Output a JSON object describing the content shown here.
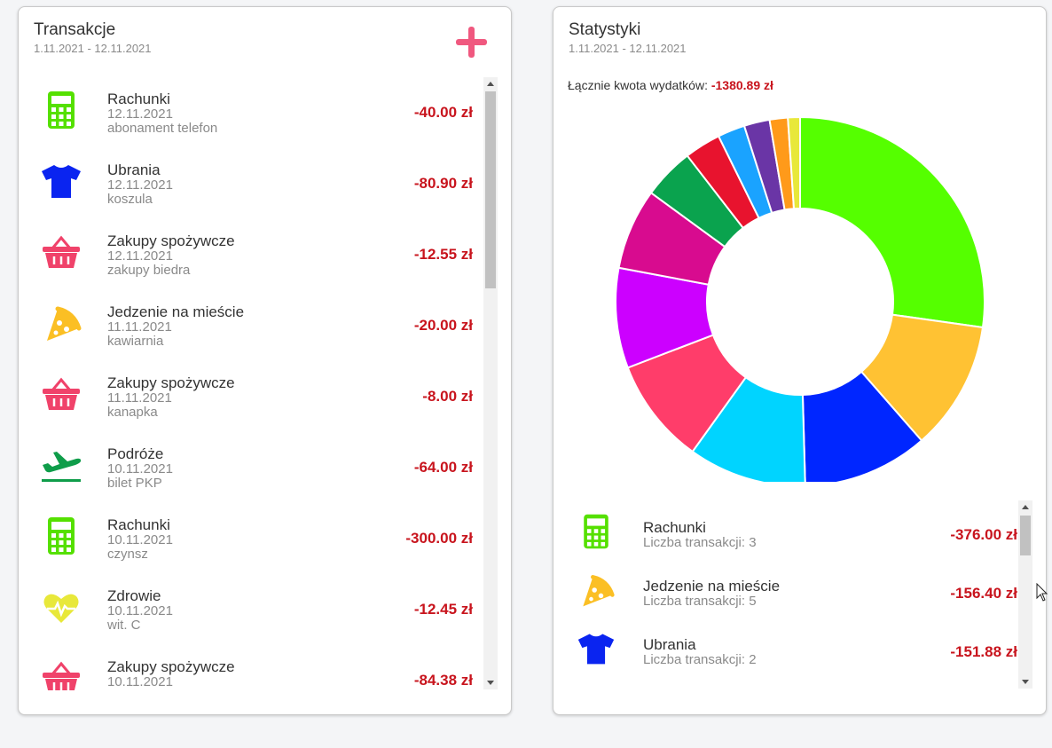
{
  "transactions": {
    "title": "Transakcje",
    "date_range": "1.11.2021 - 12.11.2021",
    "items": [
      {
        "category": "Rachunki",
        "date": "12.11.2021",
        "desc": "abonament telefon",
        "amount": "-40.00 zł",
        "icon": "calculator-icon",
        "color": "#55e000"
      },
      {
        "category": "Ubrania",
        "date": "12.11.2021",
        "desc": "koszula",
        "amount": "-80.90 zł",
        "icon": "tshirt-icon",
        "color": "#0a24f0"
      },
      {
        "category": "Zakupy spożywcze",
        "date": "12.11.2021",
        "desc": "zakupy biedra",
        "amount": "-12.55 zł",
        "icon": "basket-icon",
        "color": "#f0426a"
      },
      {
        "category": "Jedzenie na mieście",
        "date": "11.11.2021",
        "desc": "kawiarnia",
        "amount": "-20.00 zł",
        "icon": "pizza-icon",
        "color": "#fbbf24"
      },
      {
        "category": "Zakupy spożywcze",
        "date": "11.11.2021",
        "desc": "kanapka",
        "amount": "-8.00 zł",
        "icon": "basket-icon",
        "color": "#f0426a"
      },
      {
        "category": "Podróże",
        "date": "10.11.2021",
        "desc": "bilet PKP",
        "amount": "-64.00 zł",
        "icon": "airplane-icon",
        "color": "#0f9d4a"
      },
      {
        "category": "Rachunki",
        "date": "10.11.2021",
        "desc": "czynsz",
        "amount": "-300.00 zł",
        "icon": "calculator-icon",
        "color": "#55e000"
      },
      {
        "category": "Zdrowie",
        "date": "10.11.2021",
        "desc": "wit. C",
        "amount": "-12.45 zł",
        "icon": "heart-pulse-icon",
        "color": "#e8e83a"
      },
      {
        "category": "Zakupy spożywcze",
        "date": "10.11.2021",
        "desc": "",
        "amount": "-84.38 zł",
        "icon": "basket-icon",
        "color": "#f0426a"
      }
    ]
  },
  "statistics": {
    "title": "Statystyki",
    "date_range": "1.11.2021 - 12.11.2021",
    "total_label": "Łącznie kwota wydatków: ",
    "total_value": "-1380.89 zł",
    "categories": [
      {
        "name": "Rachunki",
        "count_label": "Liczba transakcji: 3",
        "amount": "-376.00 zł",
        "icon": "calculator-icon",
        "color": "#55e000"
      },
      {
        "name": "Jedzenie na mieście",
        "count_label": "Liczba transakcji: 5",
        "amount": "-156.40 zł",
        "icon": "pizza-icon",
        "color": "#fbbf24"
      },
      {
        "name": "Ubrania",
        "count_label": "Liczba transakcji: 2",
        "amount": "-151.88 zł",
        "icon": "tshirt-icon",
        "color": "#0a24f0"
      }
    ]
  },
  "chart_data": {
    "type": "pie",
    "variant": "donut",
    "title": "",
    "slices": [
      {
        "value": 376.0,
        "color": "#55ff00"
      },
      {
        "value": 156.4,
        "color": "#ffc233"
      },
      {
        "value": 151.88,
        "color": "#0026ff"
      },
      {
        "value": 143.0,
        "color": "#00d4ff"
      },
      {
        "value": 128.0,
        "color": "#ff3d6a"
      },
      {
        "value": 121.0,
        "color": "#cc00ff"
      },
      {
        "value": 98.0,
        "color": "#d80b8f"
      },
      {
        "value": 62.0,
        "color": "#0aa34e"
      },
      {
        "value": 44.0,
        "color": "#e8132e"
      },
      {
        "value": 33.0,
        "color": "#1aa3ff"
      },
      {
        "value": 31.0,
        "color": "#6a35a6"
      },
      {
        "value": 22.0,
        "color": "#ff9a1a"
      },
      {
        "value": 14.61,
        "color": "#e8e83a"
      }
    ],
    "legend": "none"
  }
}
